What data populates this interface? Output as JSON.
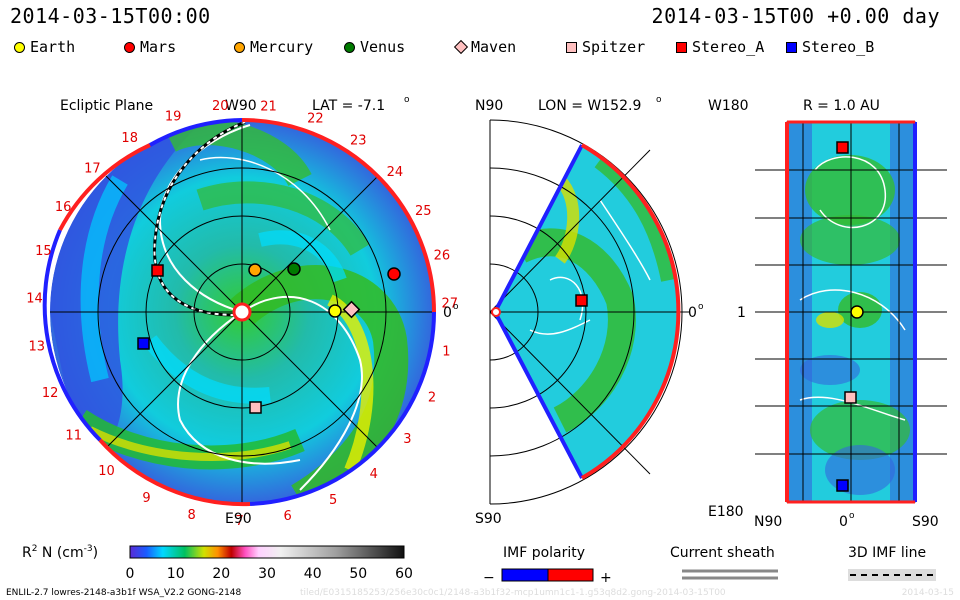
{
  "header": {
    "left_time": "2014-03-15T00:00",
    "right_time": "2014-03-15T00 +0.00 day"
  },
  "legend": [
    {
      "label": "Earth",
      "color": "#ffff00",
      "shape": "circle"
    },
    {
      "label": "Mars",
      "color": "#ff0000",
      "shape": "circle"
    },
    {
      "label": "Mercury",
      "color": "#ffa500",
      "shape": "circle"
    },
    {
      "label": "Venus",
      "color": "#007a00",
      "shape": "circle"
    },
    {
      "label": "Maven",
      "color": "#ffc0c0",
      "shape": "diamond"
    },
    {
      "label": "Spitzer",
      "color": "#ffc0c0",
      "shape": "square"
    },
    {
      "label": "Stereo_A",
      "color": "#ff0000",
      "shape": "square"
    },
    {
      "label": "Stereo_B",
      "color": "#0000ff",
      "shape": "square"
    }
  ],
  "panels": {
    "ecliptic": {
      "title": "Ecliptic Plane",
      "top_label": "W90",
      "bottom_label": "E90",
      "right_label": "0",
      "lat_label": "LAT = -7.1",
      "degree_mark": "o",
      "carrington_ticks": [
        "20",
        "21",
        "22",
        "23",
        "24",
        "25",
        "26",
        "27",
        "1",
        "2",
        "3",
        "4",
        "5",
        "6",
        "7",
        "8",
        "9",
        "10",
        "11",
        "12",
        "13",
        "14",
        "15",
        "16",
        "17",
        "18",
        "19"
      ]
    },
    "meridional": {
      "top_label": "N90",
      "bottom_label": "S90",
      "right_label": "0",
      "lon_label": "LON = W152.9",
      "degree_mark": "o"
    },
    "earth_view": {
      "top_label": "W180",
      "bottom_label": "E180",
      "mid_label": "1",
      "r_label": "R = 1.0 AU",
      "x_left": "N90",
      "x_mid": "0",
      "x_right": "S90",
      "degree_mark": "o"
    }
  },
  "colorbar": {
    "label": "R",
    "label_sup": "2",
    "label_rest": " N (cm",
    "label_exp": "-3",
    "label_close": ")",
    "ticks": [
      "0",
      "10",
      "20",
      "30",
      "40",
      "50",
      "60"
    ]
  },
  "imf_polarity": {
    "title": "IMF polarity",
    "minus": "−",
    "plus": "+",
    "neg_color": "#0000ff",
    "pos_color": "#ff0000"
  },
  "current_sheath": {
    "title": "Current sheath"
  },
  "imf_line": {
    "title": "3D IMF line"
  },
  "footer": {
    "left": "ENLIL-2.7 lowres-2148-a3b1f WSA_V2.2 GONG-2148",
    "faint": "tiled/E0315185253/256e30c0c1/2148-a3b1f32-mcp1umn1c1-1.g53q8d2.gong-2014-03-15T00",
    "right": "2014-03-15"
  },
  "chart_data": [
    {
      "type": "heatmap",
      "panel": "Ecliptic Plane",
      "quantity": "R^2 N (cm^-3)",
      "range": [
        0,
        60
      ],
      "bodies": [
        "Earth",
        "Mars",
        "Mercury",
        "Venus",
        "Maven",
        "Spitzer",
        "Stereo_A",
        "Stereo_B"
      ]
    },
    {
      "type": "heatmap",
      "panel": "Meridional plane",
      "lon": "W152.9",
      "range": [
        0,
        60
      ]
    },
    {
      "type": "heatmap",
      "panel": "R = 1.0 AU",
      "range": [
        0,
        60
      ]
    }
  ]
}
